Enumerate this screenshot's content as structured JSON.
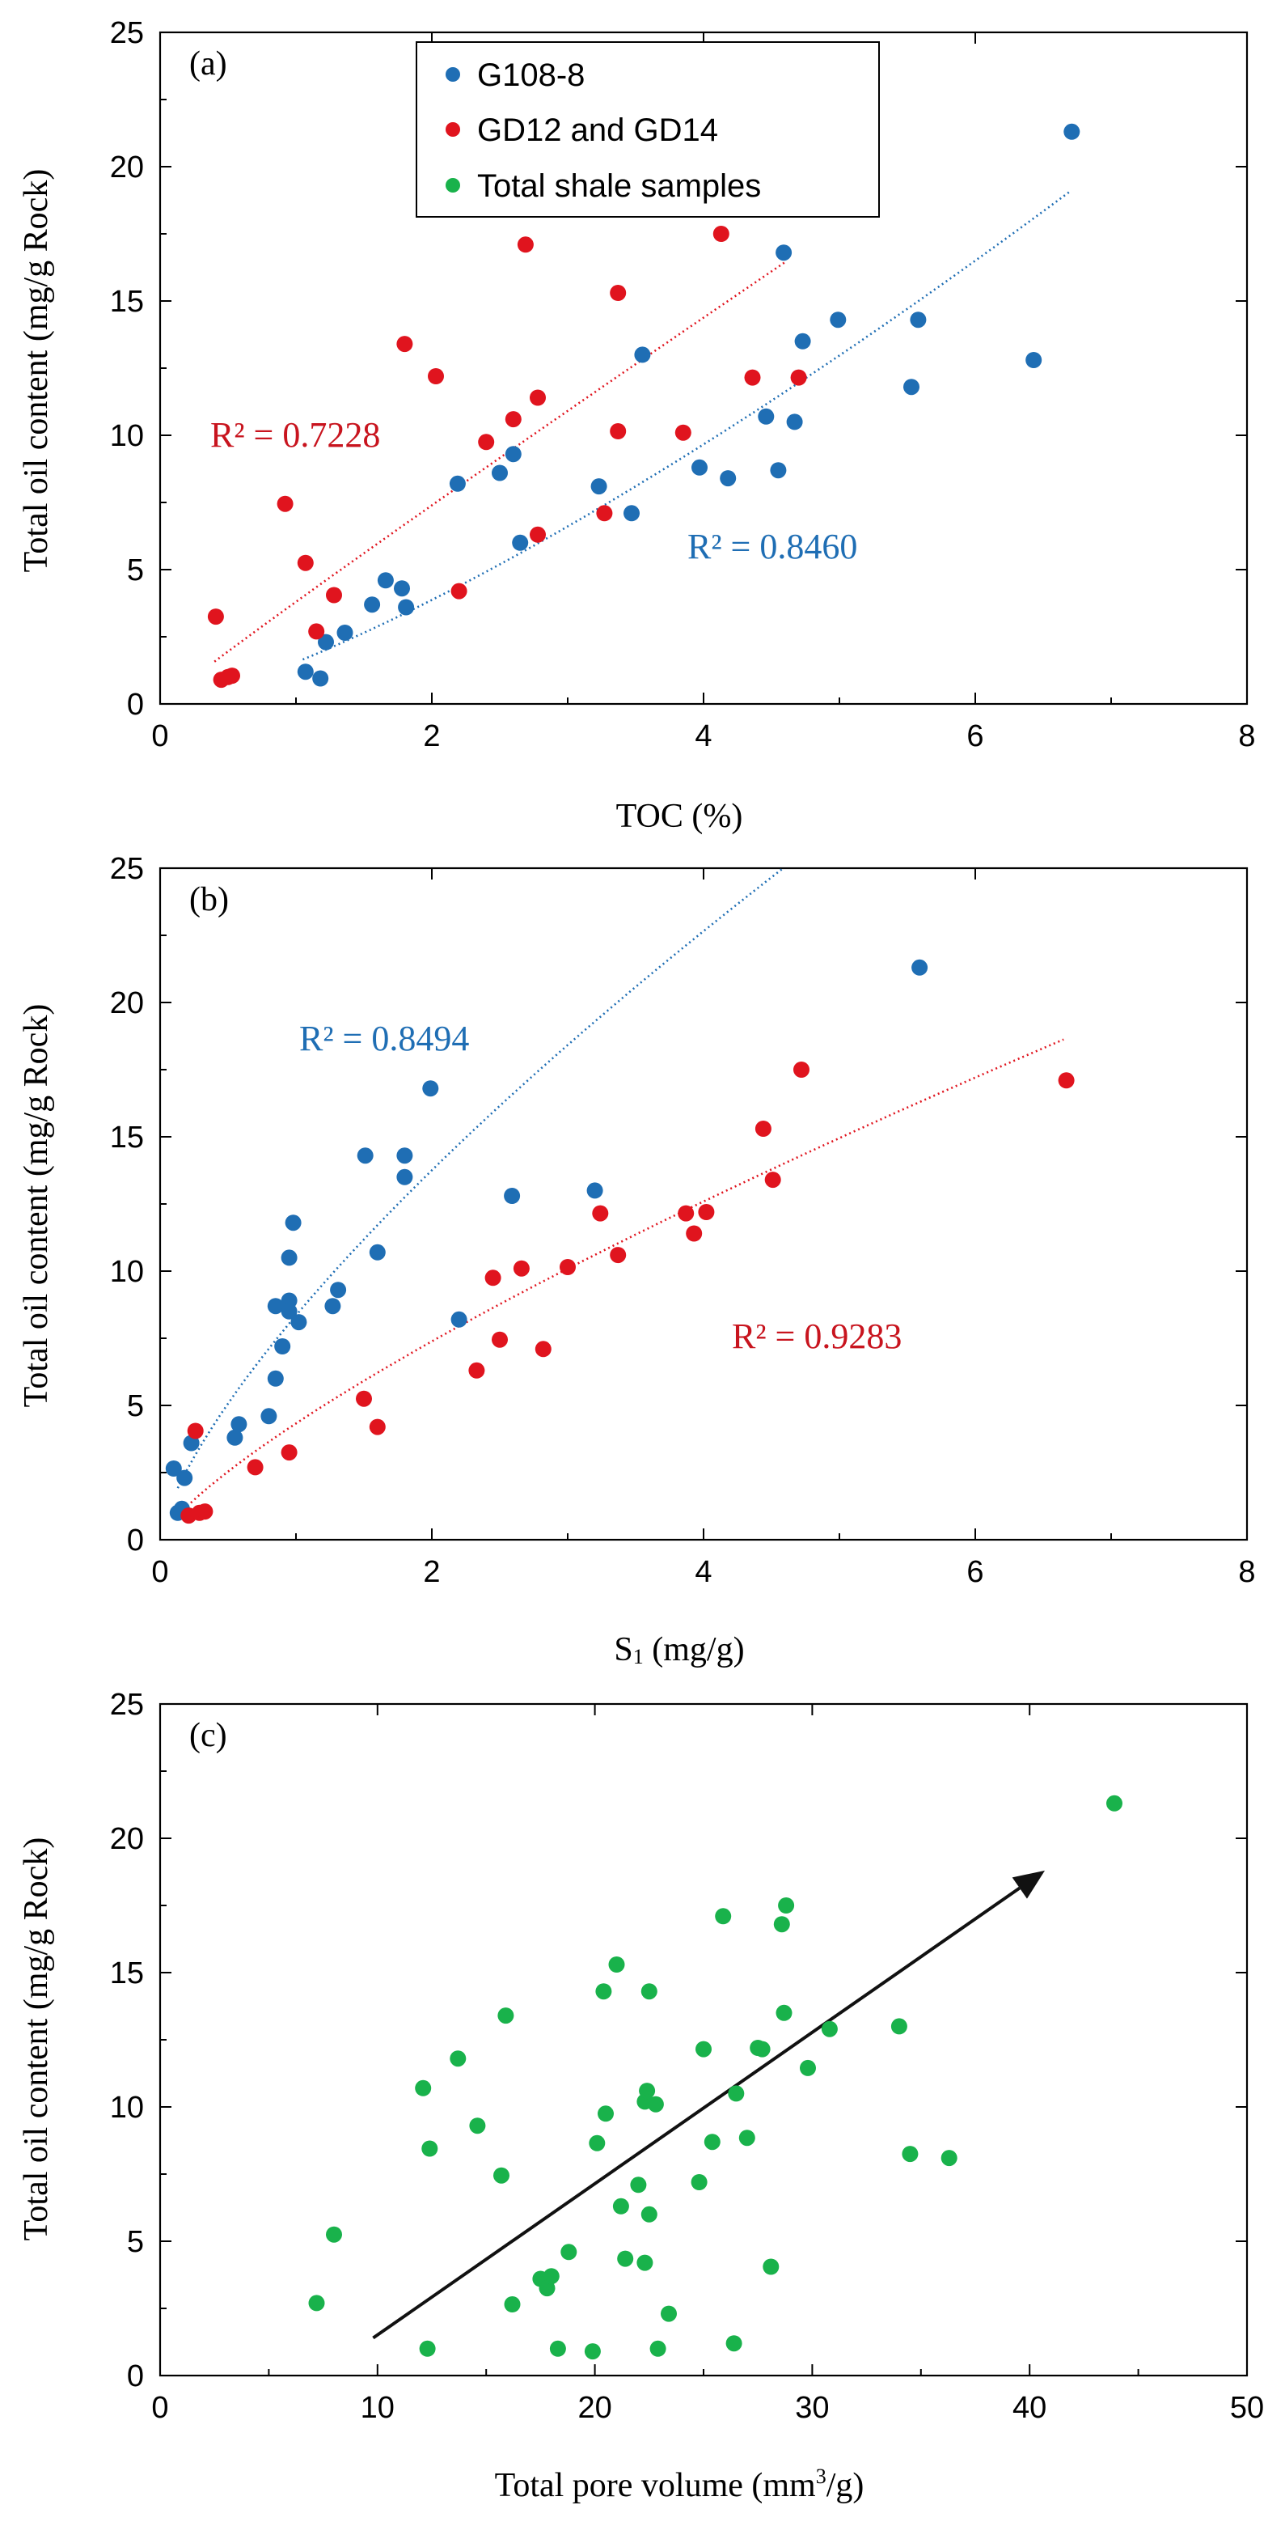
{
  "colors": {
    "blue": "#1f6eb4",
    "red": "#e0141e",
    "green": "#19b24b",
    "blueText": "#1f6eb4",
    "redText": "#c8141e",
    "arrow": "#111111"
  },
  "legend": {
    "items": [
      "G108-8",
      "GD12 and GD14",
      "Total shale samples"
    ]
  },
  "chart_data": [
    {
      "panel": "(a)",
      "type": "scatter",
      "xlabel": "TOC (%)",
      "ylabel": "Total oil content (mg/g Rock)",
      "xlim": [
        0,
        8
      ],
      "ylim": [
        0,
        25
      ],
      "xticks": [
        0,
        2,
        4,
        6,
        8
      ],
      "yticks": [
        0,
        5,
        10,
        15,
        20,
        25
      ],
      "annotations": [
        "R² = 0.7228",
        "R² = 0.8460"
      ],
      "series": [
        {
          "name": "G108-8",
          "color": "blue",
          "points": [
            [
              1.07,
              1.2
            ],
            [
              1.18,
              0.95
            ],
            [
              1.22,
              2.3
            ],
            [
              1.36,
              2.65
            ],
            [
              1.56,
              3.7
            ],
            [
              1.66,
              4.6
            ],
            [
              1.78,
              4.3
            ],
            [
              1.81,
              3.6
            ],
            [
              2.19,
              8.2
            ],
            [
              2.5,
              8.6
            ],
            [
              2.6,
              9.3
            ],
            [
              2.65,
              6.0
            ],
            [
              3.23,
              8.1
            ],
            [
              3.47,
              7.1
            ],
            [
              3.55,
              13.0
            ],
            [
              3.97,
              8.8
            ],
            [
              4.18,
              8.4
            ],
            [
              4.46,
              10.7
            ],
            [
              4.55,
              8.7
            ],
            [
              4.59,
              16.8
            ],
            [
              4.67,
              10.5
            ],
            [
              4.73,
              13.5
            ],
            [
              4.99,
              14.3
            ],
            [
              5.53,
              11.8
            ],
            [
              5.58,
              14.3
            ],
            [
              6.43,
              12.8
            ],
            [
              6.71,
              21.3
            ]
          ],
          "trend": {
            "type": "power",
            "a": 1.55,
            "b": 1.32,
            "xrange": [
              1.05,
              6.7
            ]
          },
          "r2": "R² = 0.8460"
        },
        {
          "name": "GD12 and GD14",
          "color": "red",
          "points": [
            [
              0.41,
              3.25
            ],
            [
              0.45,
              0.9
            ],
            [
              0.5,
              1.0
            ],
            [
              0.53,
              1.05
            ],
            [
              0.92,
              7.45
            ],
            [
              1.07,
              5.25
            ],
            [
              1.15,
              2.7
            ],
            [
              1.28,
              4.05
            ],
            [
              1.8,
              13.4
            ],
            [
              2.03,
              12.2
            ],
            [
              2.2,
              4.2
            ],
            [
              2.4,
              9.75
            ],
            [
              2.6,
              10.6
            ],
            [
              2.69,
              17.1
            ],
            [
              2.78,
              11.4
            ],
            [
              2.78,
              6.3
            ],
            [
              3.27,
              7.1
            ],
            [
              3.37,
              10.15
            ],
            [
              3.37,
              15.3
            ],
            [
              3.85,
              10.1
            ],
            [
              4.36,
              12.15
            ],
            [
              4.13,
              17.5
            ],
            [
              4.7,
              12.15
            ]
          ],
          "trend": {
            "type": "power",
            "a": 3.8,
            "b": 0.96,
            "xrange": [
              0.4,
              4.6
            ]
          },
          "r2": "R² = 0.7228"
        }
      ]
    },
    {
      "panel": "(b)",
      "type": "scatter",
      "xlabel": "S",
      "xlabel_sub": "1",
      "xlabel_unit": " (mg/g)",
      "ylabel": "Total oil content (mg/g Rock)",
      "xlim": [
        0,
        8
      ],
      "ylim": [
        0,
        25
      ],
      "xticks": [
        0,
        2,
        4,
        6,
        8
      ],
      "yticks": [
        0,
        5,
        10,
        15,
        20,
        25
      ],
      "annotations": [
        "R² = 0.8494",
        "R² = 0.9283"
      ],
      "series": [
        {
          "name": "G108-8",
          "color": "blue",
          "points": [
            [
              0.1,
              2.65
            ],
            [
              0.13,
              1.0
            ],
            [
              0.16,
              1.15
            ],
            [
              0.18,
              2.3
            ],
            [
              0.23,
              3.6
            ],
            [
              0.55,
              3.8
            ],
            [
              0.58,
              4.3
            ],
            [
              0.8,
              4.6
            ],
            [
              0.85,
              6.0
            ],
            [
              0.85,
              8.7
            ],
            [
              0.9,
              7.2
            ],
            [
              0.95,
              8.9
            ],
            [
              0.95,
              8.5
            ],
            [
              0.95,
              10.5
            ],
            [
              0.98,
              11.8
            ],
            [
              1.02,
              8.1
            ],
            [
              1.27,
              8.7
            ],
            [
              1.31,
              9.3
            ],
            [
              1.51,
              14.3
            ],
            [
              1.6,
              10.7
            ],
            [
              1.8,
              14.3
            ],
            [
              1.8,
              13.5
            ],
            [
              1.99,
              16.8
            ],
            [
              2.2,
              8.2
            ],
            [
              2.59,
              12.8
            ],
            [
              3.2,
              13.0
            ],
            [
              5.59,
              21.3
            ]
          ],
          "trend": {
            "type": "power",
            "a": 8.35,
            "b": 0.72,
            "xrange": [
              0.13,
              5.1
            ]
          },
          "r2": "R² = 0.8494"
        },
        {
          "name": "GD12 and GD14",
          "color": "red",
          "points": [
            [
              0.21,
              0.9
            ],
            [
              0.26,
              4.05
            ],
            [
              0.29,
              1.0
            ],
            [
              0.33,
              1.05
            ],
            [
              0.7,
              2.7
            ],
            [
              0.95,
              3.25
            ],
            [
              1.5,
              5.25
            ],
            [
              1.6,
              4.2
            ],
            [
              2.33,
              6.3
            ],
            [
              2.45,
              9.75
            ],
            [
              2.5,
              7.45
            ],
            [
              2.66,
              10.1
            ],
            [
              2.82,
              7.1
            ],
            [
              3.0,
              10.15
            ],
            [
              3.24,
              12.15
            ],
            [
              3.37,
              10.6
            ],
            [
              3.87,
              12.15
            ],
            [
              3.93,
              11.4
            ],
            [
              4.02,
              12.2
            ],
            [
              4.44,
              15.3
            ],
            [
              4.51,
              13.4
            ],
            [
              4.72,
              17.5
            ],
            [
              6.67,
              17.1
            ]
          ],
          "trend": {
            "type": "power",
            "a": 4.33,
            "b": 0.77,
            "xrange": [
              0.2,
              6.65
            ]
          },
          "r2": "R² = 0.9283"
        }
      ]
    },
    {
      "panel": "(c)",
      "type": "scatter",
      "xlabel": "Total pore volume (mm",
      "xlabel_sup": "3",
      "xlabel_unit": "/g)",
      "ylabel": "Total oil content (mg/g Rock)",
      "xlim": [
        0,
        50
      ],
      "ylim": [
        0,
        25
      ],
      "xticks": [
        0,
        10,
        20,
        30,
        40,
        50
      ],
      "yticks": [
        0,
        5,
        10,
        15,
        20,
        25
      ],
      "series": [
        {
          "name": "Total shale samples",
          "color": "green",
          "points": [
            [
              7.2,
              2.7
            ],
            [
              8.0,
              5.25
            ],
            [
              12.1,
              10.7
            ],
            [
              12.3,
              1.0
            ],
            [
              12.4,
              8.45
            ],
            [
              13.7,
              11.8
            ],
            [
              14.6,
              9.3
            ],
            [
              15.7,
              7.45
            ],
            [
              15.9,
              13.4
            ],
            [
              16.2,
              2.65
            ],
            [
              17.5,
              3.6
            ],
            [
              17.8,
              3.25
            ],
            [
              18.0,
              3.7
            ],
            [
              18.3,
              1.0
            ],
            [
              18.8,
              4.6
            ],
            [
              19.9,
              0.9
            ],
            [
              20.1,
              8.65
            ],
            [
              20.4,
              14.3
            ],
            [
              20.5,
              9.75
            ],
            [
              21.0,
              15.3
            ],
            [
              21.2,
              6.3
            ],
            [
              21.4,
              4.35
            ],
            [
              22.0,
              7.1
            ],
            [
              22.3,
              4.2
            ],
            [
              22.3,
              10.2
            ],
            [
              22.4,
              10.6
            ],
            [
              22.5,
              14.3
            ],
            [
              22.5,
              6.0
            ],
            [
              22.8,
              10.1
            ],
            [
              22.9,
              1.0
            ],
            [
              23.4,
              2.3
            ],
            [
              24.8,
              7.2
            ],
            [
              25.0,
              12.15
            ],
            [
              25.4,
              8.7
            ],
            [
              25.9,
              17.1
            ],
            [
              26.4,
              1.2
            ],
            [
              26.5,
              10.5
            ],
            [
              27.0,
              8.85
            ],
            [
              27.5,
              12.2
            ],
            [
              27.7,
              12.15
            ],
            [
              28.1,
              4.05
            ],
            [
              28.6,
              16.8
            ],
            [
              28.7,
              13.5
            ],
            [
              28.8,
              17.5
            ],
            [
              29.8,
              11.45
            ],
            [
              30.8,
              12.9
            ],
            [
              34.0,
              13.0
            ],
            [
              34.5,
              8.25
            ],
            [
              36.3,
              8.1
            ],
            [
              43.9,
              21.3
            ]
          ]
        }
      ],
      "arrow": {
        "from": [
          9.8,
          1.4
        ],
        "to": [
          40.7,
          18.8
        ]
      }
    }
  ]
}
